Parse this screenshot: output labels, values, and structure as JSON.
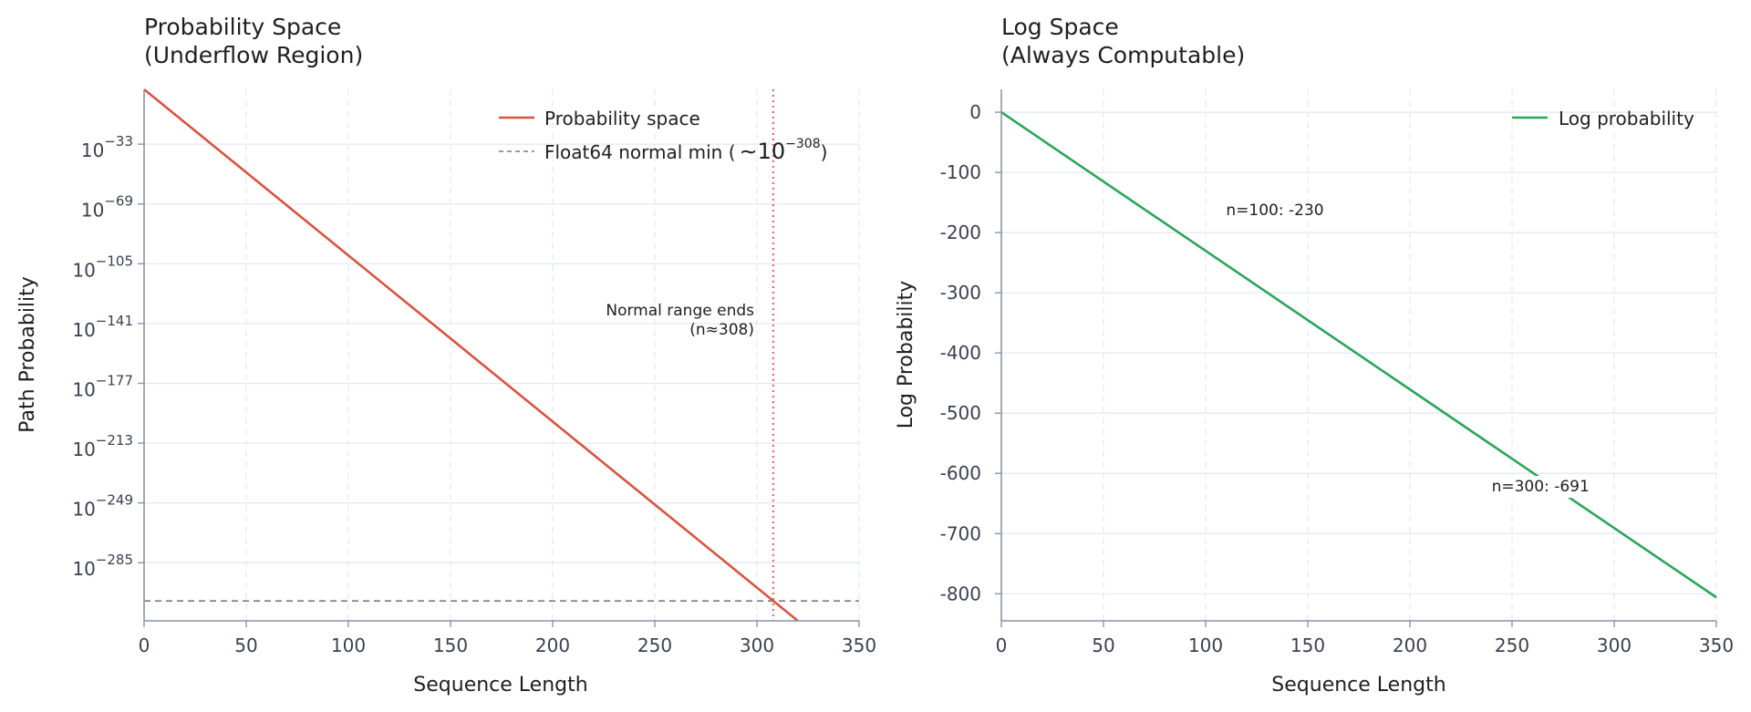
{
  "chart_data": [
    {
      "type": "line",
      "title": [
        "Probability Space",
        "(Underflow Region)"
      ],
      "xlabel": "Sequence Length",
      "ylabel": "Path Probability",
      "xlim": [
        0,
        350
      ],
      "ylim_log10": [
        -320,
        0
      ],
      "y_scale": "log",
      "x_ticks": [
        0,
        50,
        100,
        150,
        200,
        250,
        300,
        350
      ],
      "y_ticks": [
        {
          "base": "10",
          "exp": "−33",
          "log10": -33
        },
        {
          "base": "10",
          "exp": "−69",
          "log10": -69
        },
        {
          "base": "10",
          "exp": "−105",
          "log10": -105
        },
        {
          "base": "10",
          "exp": "−141",
          "log10": -141
        },
        {
          "base": "10",
          "exp": "−177",
          "log10": -177
        },
        {
          "base": "10",
          "exp": "−213",
          "log10": -213
        },
        {
          "base": "10",
          "exp": "−249",
          "log10": -249
        },
        {
          "base": "10",
          "exp": "−285",
          "log10": -285
        }
      ],
      "grid": true,
      "series": [
        {
          "name": "Probability space",
          "color": "#d9533f",
          "style": "solid",
          "x": [
            0,
            320
          ],
          "log10_y": [
            0,
            -320
          ]
        }
      ],
      "reference_lines": [
        {
          "orientation": "horizontal",
          "log10_y": -308,
          "color": "#7a7a7a",
          "style": "dashed",
          "legend_text": "Float64 normal min (",
          "legend_math_prefix": "∼10",
          "legend_math_exp": "−308",
          "legend_suffix": ")"
        },
        {
          "orientation": "vertical",
          "x": 308,
          "color": "#e86a6a",
          "style": "dotted"
        }
      ],
      "annotations": [
        {
          "lines": [
            "Normal range ends",
            "(n≈308)"
          ],
          "x": 300,
          "log10_y": -117
        }
      ],
      "legend_position": "top-right"
    },
    {
      "type": "line",
      "title": [
        "Log Space",
        "(Always Computable)"
      ],
      "xlabel": "Sequence Length",
      "ylabel": "Log Probability",
      "xlim": [
        0,
        350
      ],
      "ylim": [
        -845,
        38
      ],
      "x_ticks": [
        0,
        50,
        100,
        150,
        200,
        250,
        300,
        350
      ],
      "y_ticks": [
        0,
        -100,
        -200,
        -300,
        -400,
        -500,
        -600,
        -700,
        -800
      ],
      "grid": true,
      "series": [
        {
          "name": "Log probability",
          "color": "#2aa55a",
          "style": "solid",
          "x": [
            0,
            350
          ],
          "y": [
            0,
            -806
          ]
        }
      ],
      "annotations": [
        {
          "text": "n=100: -230",
          "x": 110,
          "y": -171
        },
        {
          "text": "n=300: -691",
          "x": 240,
          "y": -630
        }
      ],
      "legend_position": "top-right"
    }
  ]
}
